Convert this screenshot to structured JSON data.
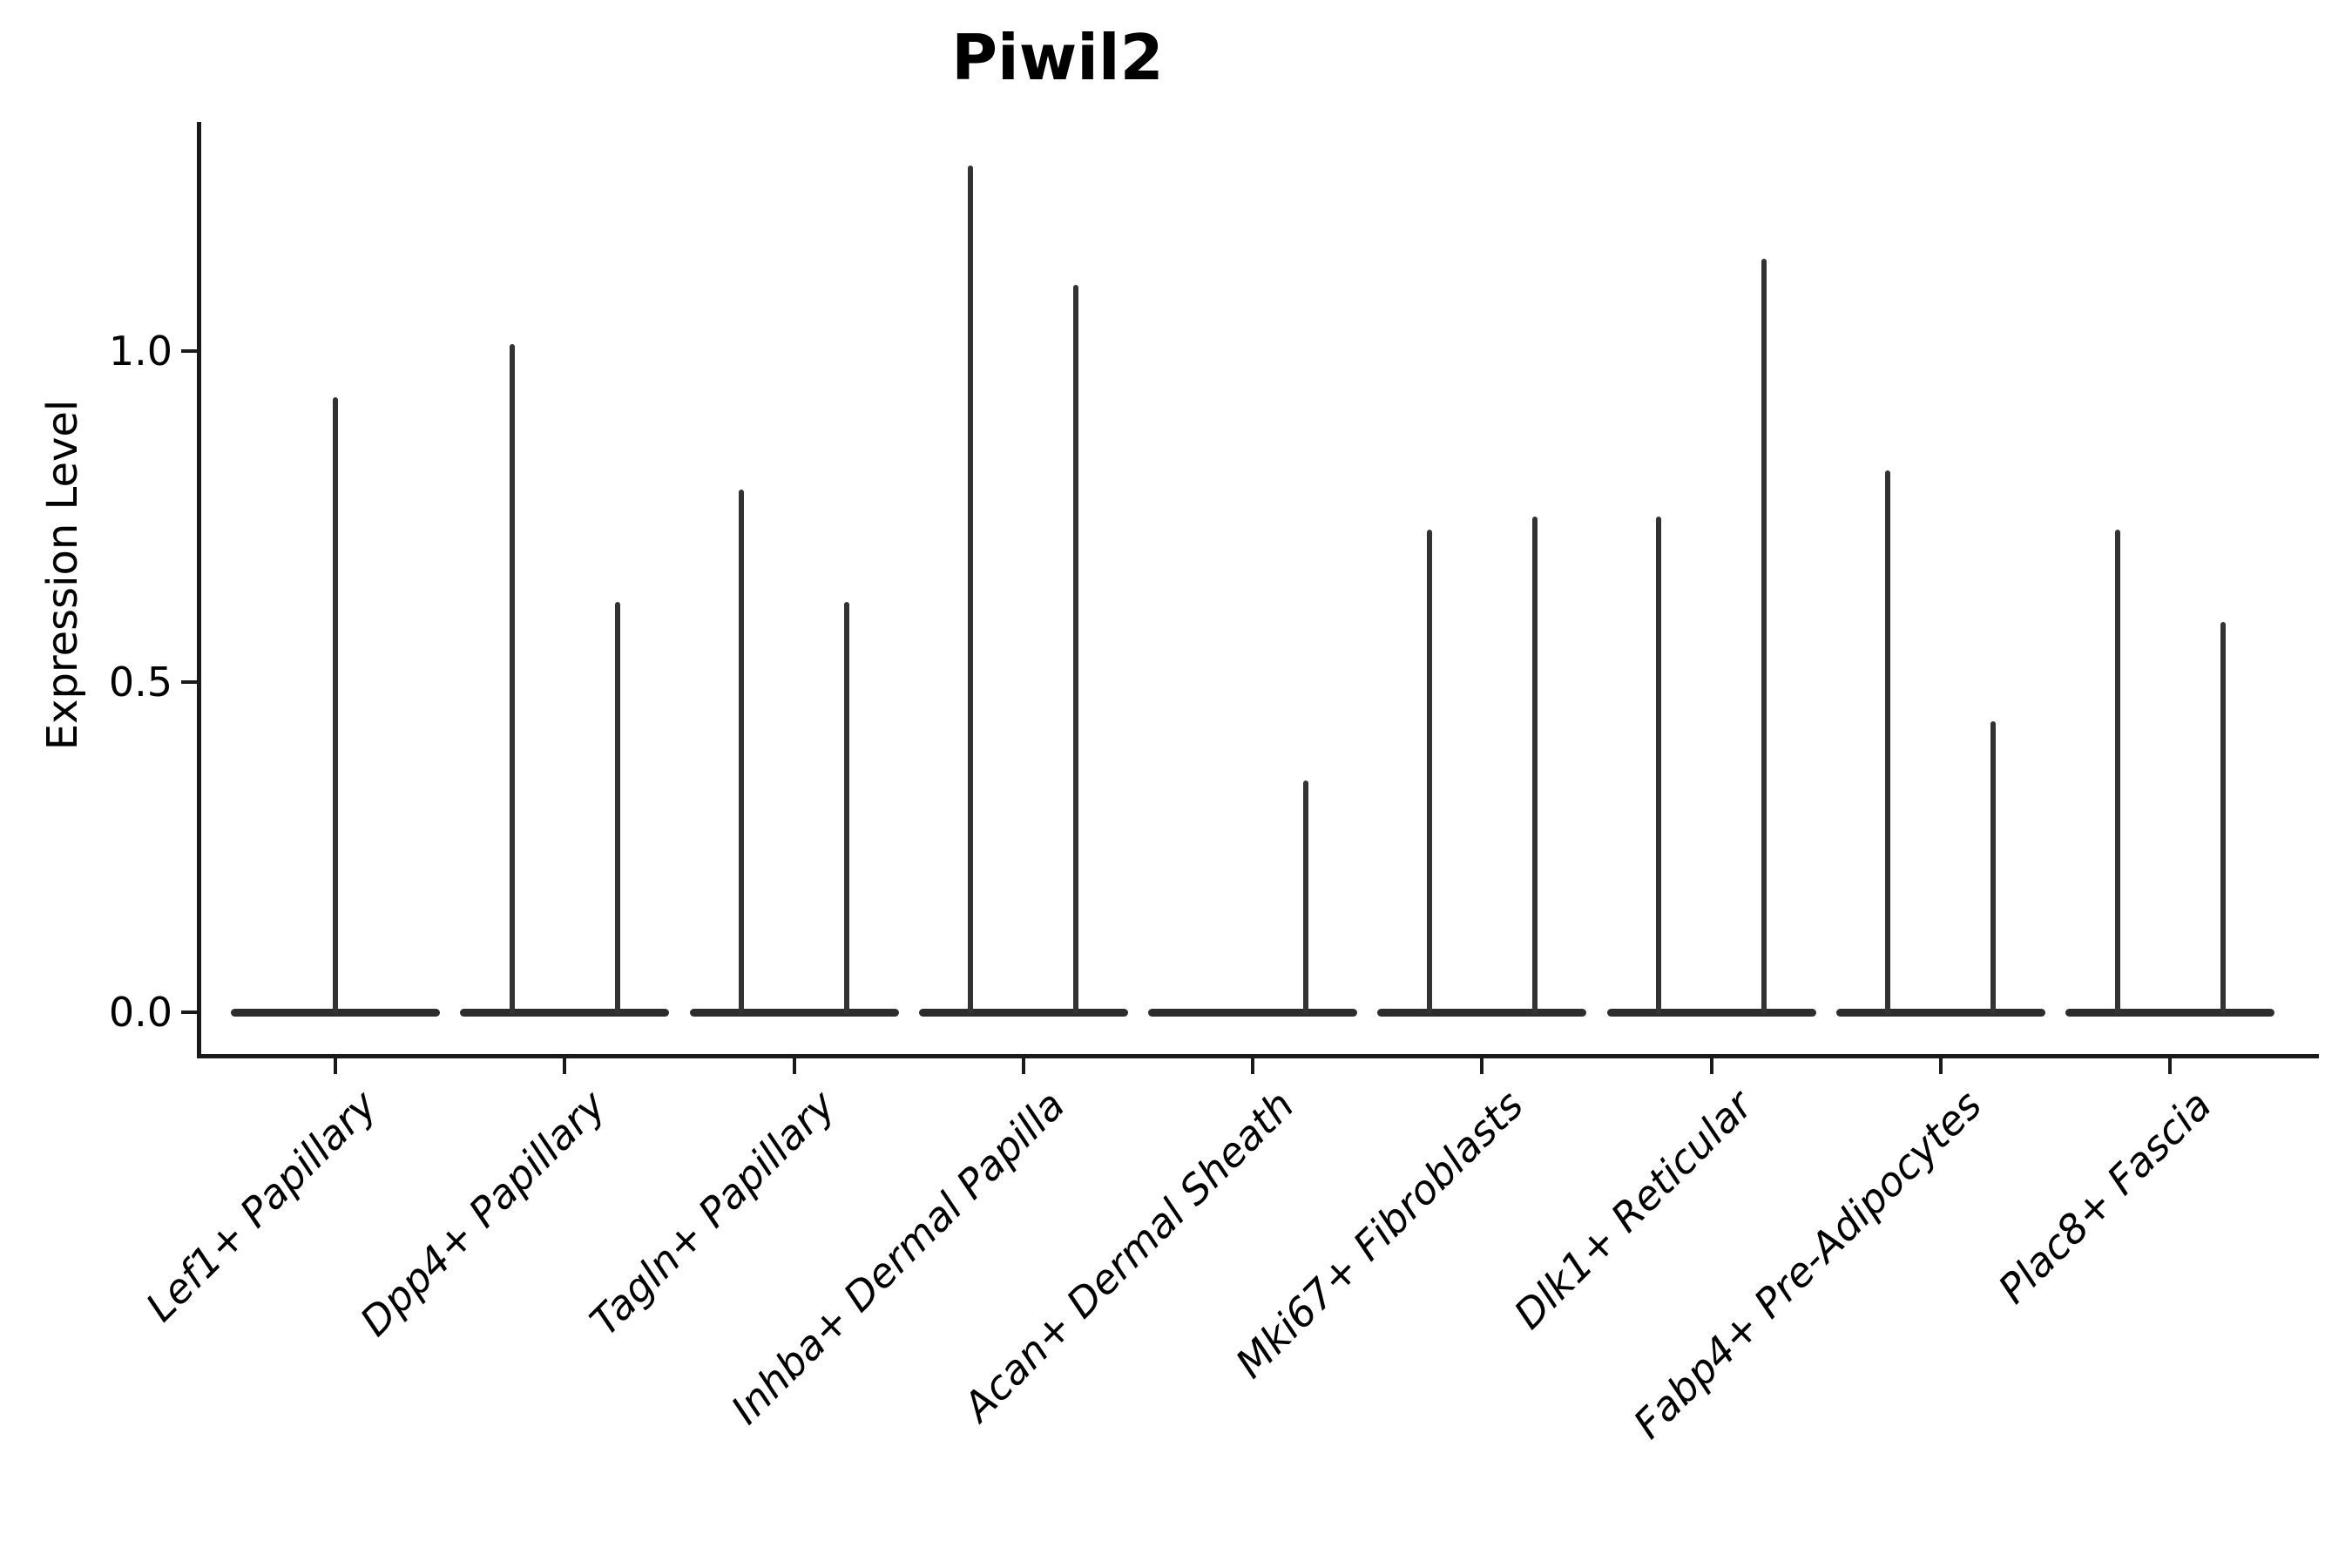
{
  "chart_data": {
    "type": "violin",
    "title": "Piwil2",
    "ylabel": "Expression Level",
    "xlabel": "",
    "grid": false,
    "legend": "none",
    "y_ticks": [
      0.0,
      0.5,
      1.0
    ],
    "ylim": [
      -0.06,
      1.35
    ],
    "x_tick_rotation_deg": 45,
    "x_tick_style": "italic",
    "categories": [
      "Lef1+ Papillary",
      "Dpp4+ Papillary",
      "Tagln+ Papillary",
      "Inhba+ Dermal Papilla",
      "Acan+ Dermal Sheath",
      "Mki67+ Fibroblasts",
      "Dlk1+ Reticular",
      "Fabp4+ Pre-Adipocytes",
      "Plac8+ Fascia"
    ],
    "violins": [
      {
        "category": "Lef1+ Papillary",
        "spikes": [
          {
            "pos": "center",
            "max": 0.93
          }
        ]
      },
      {
        "category": "Dpp4+ Papillary",
        "spikes": [
          {
            "pos": "left",
            "max": 1.01
          },
          {
            "pos": "right",
            "max": 0.62
          }
        ]
      },
      {
        "category": "Tagln+ Papillary",
        "spikes": [
          {
            "pos": "left",
            "max": 0.79
          },
          {
            "pos": "right",
            "max": 0.62
          }
        ]
      },
      {
        "category": "Inhba+ Dermal Papilla",
        "spikes": [
          {
            "pos": "left",
            "max": 1.28
          },
          {
            "pos": "right",
            "max": 1.1
          }
        ]
      },
      {
        "category": "Acan+ Dermal Sheath",
        "spikes": [
          {
            "pos": "right",
            "max": 0.35
          }
        ]
      },
      {
        "category": "Mki67+ Fibroblasts",
        "spikes": [
          {
            "pos": "left",
            "max": 0.73
          },
          {
            "pos": "right",
            "max": 0.75
          }
        ]
      },
      {
        "category": "Dlk1+ Reticular",
        "spikes": [
          {
            "pos": "left",
            "max": 0.75
          },
          {
            "pos": "right",
            "max": 1.14
          }
        ]
      },
      {
        "category": "Fabp4+ Pre-Adipocytes",
        "spikes": [
          {
            "pos": "left",
            "max": 0.82
          },
          {
            "pos": "right",
            "max": 0.44
          }
        ]
      },
      {
        "category": "Plac8+ Fascia",
        "spikes": [
          {
            "pos": "left",
            "max": 0.73
          },
          {
            "pos": "right",
            "max": 0.59
          }
        ]
      }
    ],
    "colors": {
      "spine": "#1a1a1a",
      "violin_line": "#333333",
      "violin_baseline": "#2d2d2d",
      "text": "#000000",
      "background": "#ffffff"
    }
  }
}
